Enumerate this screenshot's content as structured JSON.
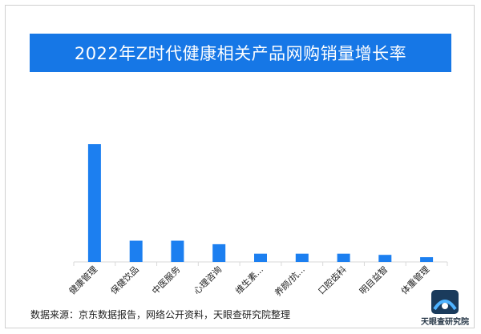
{
  "chart_data": {
    "type": "bar",
    "title": "2022年Z时代健康相关产品网购销量增长率",
    "categories": [
      "健康管理",
      "保健饮品",
      "中医服务",
      "心理咨询",
      "维生素...",
      "养颜/抗...",
      "口腔齿科",
      "明目益智",
      "体重管理"
    ],
    "values": [
      100,
      18,
      18,
      15,
      7,
      7,
      7,
      6,
      4
    ],
    "ylim": [
      0,
      100
    ],
    "grid": false,
    "xlabel": "",
    "ylabel": "",
    "bar_color": "#1c7ff0"
  },
  "source_text": "数据来源：京东数据报告，网络公开资料，天眼查研究院整理",
  "logo": {
    "text": "天眼查研究院",
    "icon": "tianyancha-logo-icon"
  }
}
